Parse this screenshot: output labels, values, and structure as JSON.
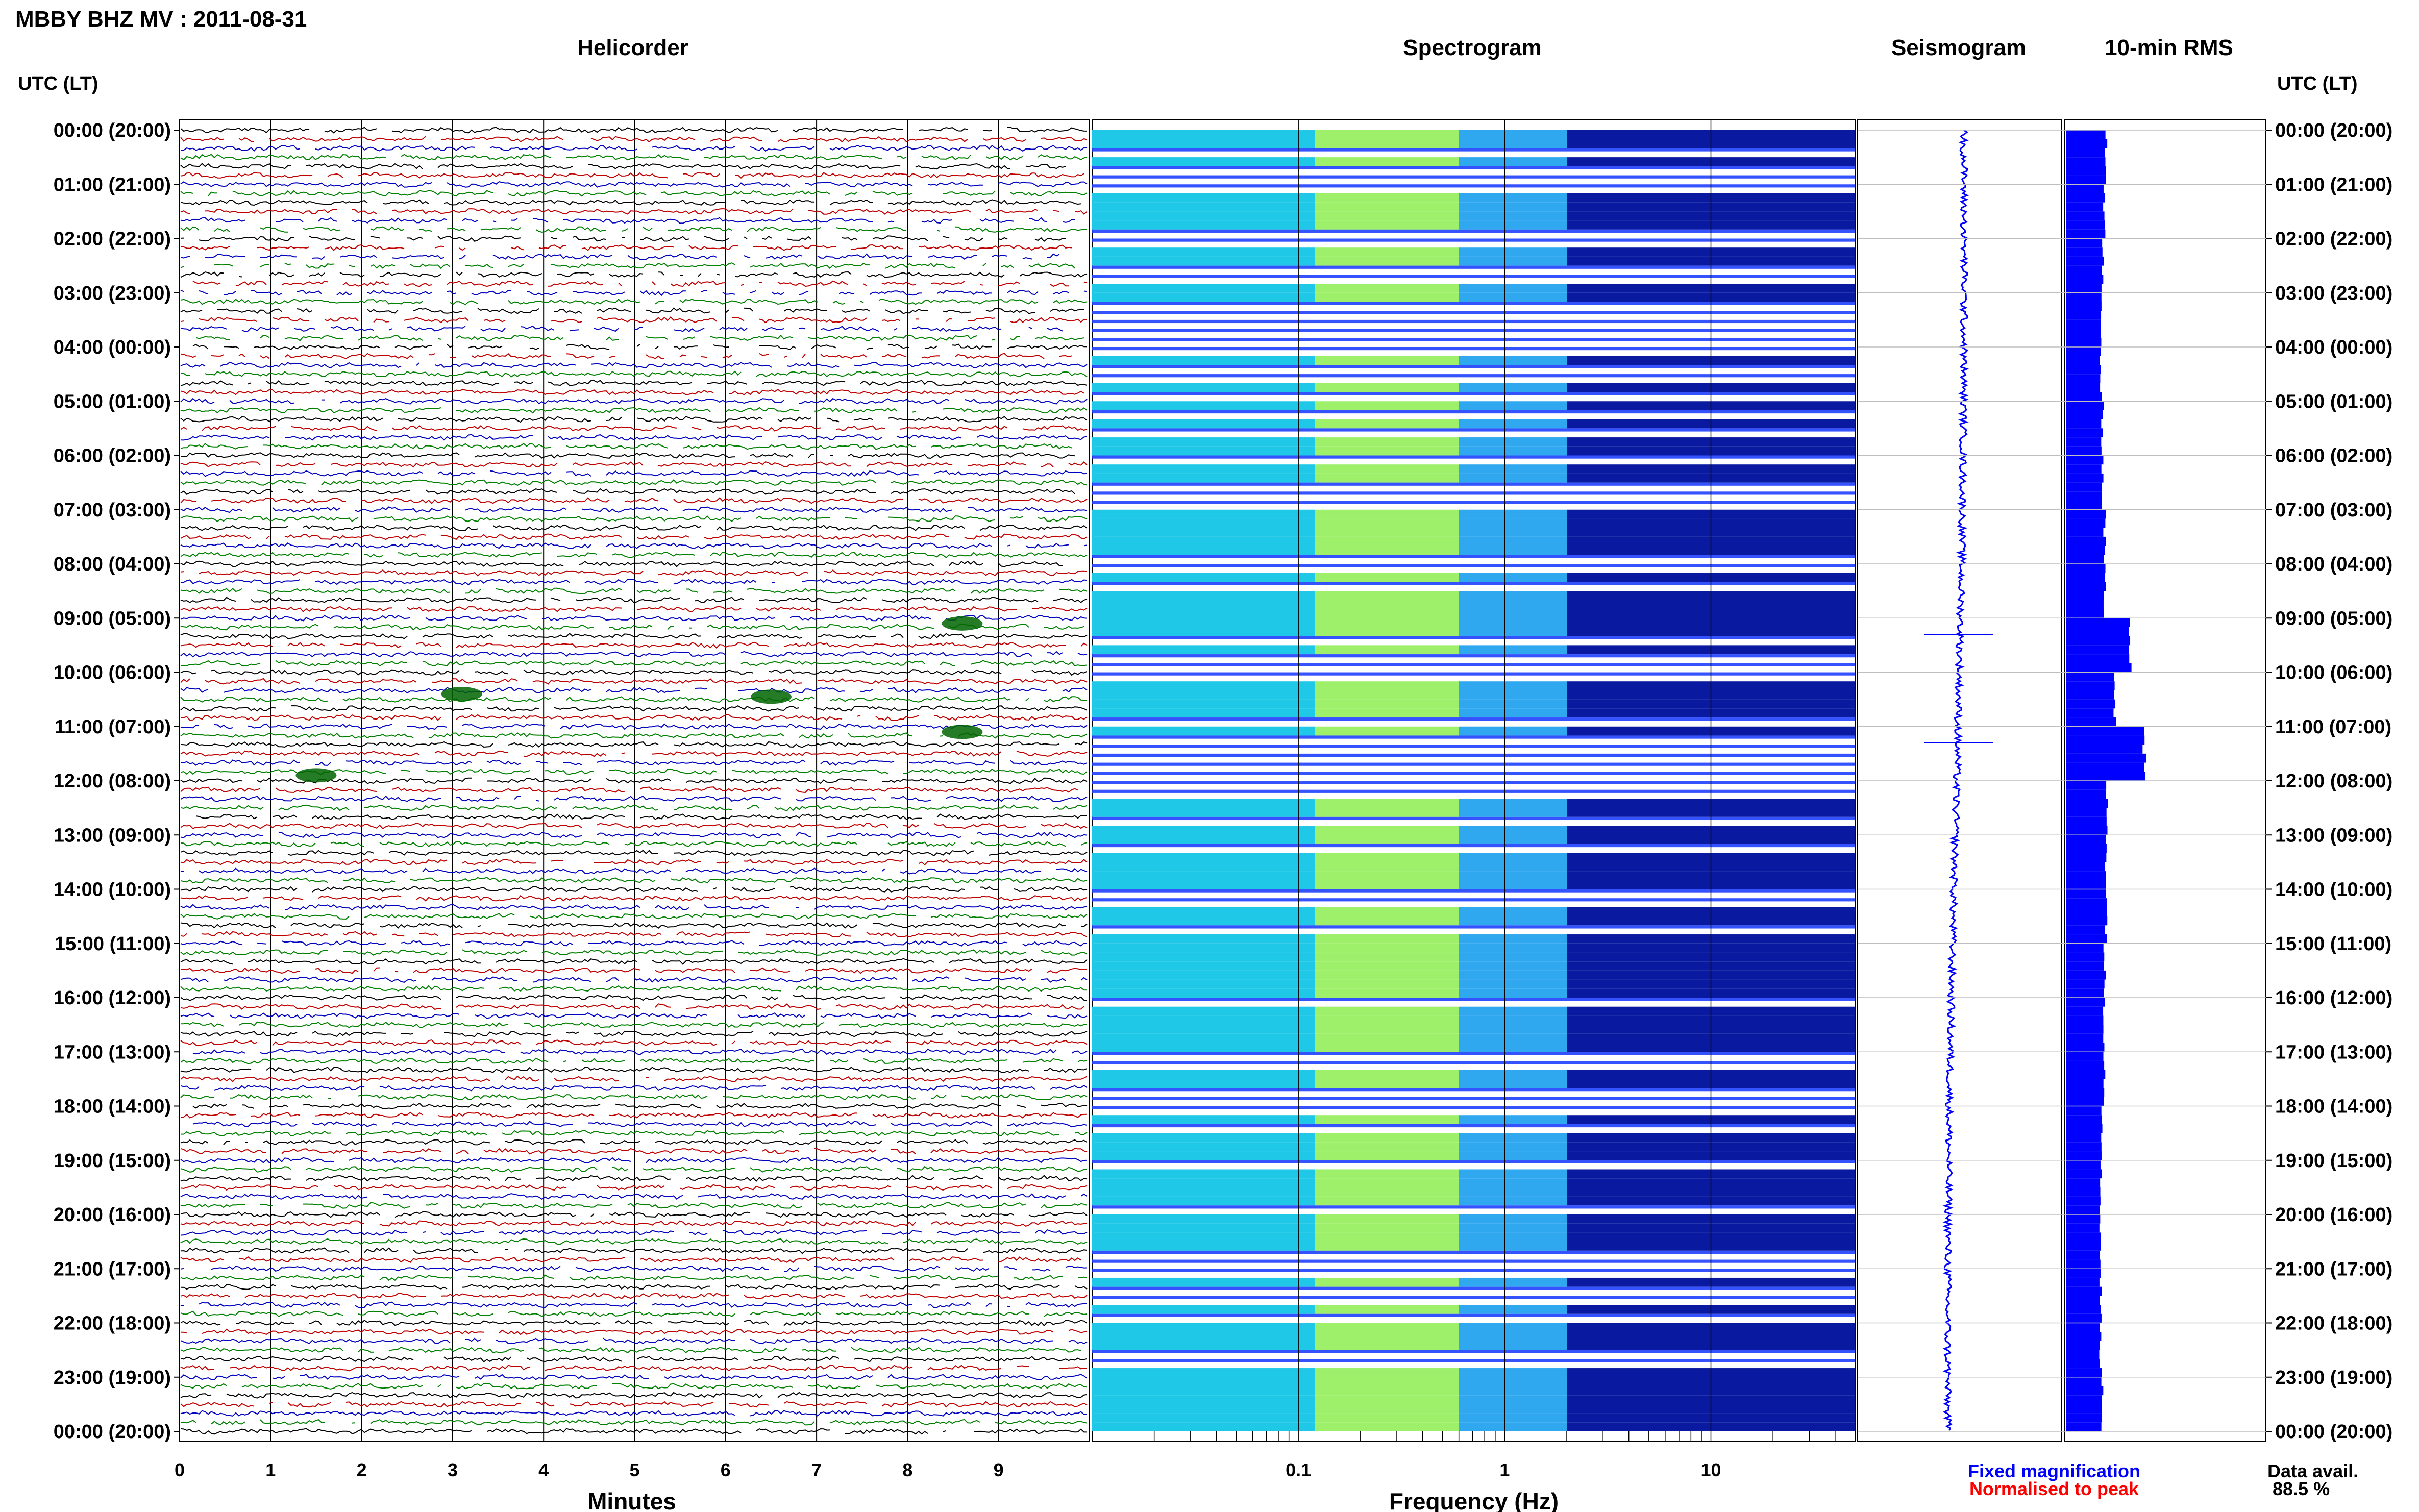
{
  "header": {
    "station_title": "MBBY BHZ MV : 2011-08-31",
    "tz_label_left": "UTC (LT)",
    "tz_label_right": "UTC (LT)"
  },
  "panels": {
    "helicorder": "Helicorder",
    "spectrogram": "Spectrogram",
    "seismogram": "Seismogram",
    "rms": "10-min RMS"
  },
  "axes": {
    "minutes_label": "Minutes",
    "frequency_label": "Frequency (Hz)"
  },
  "legend": {
    "fixed": "Fixed magnification",
    "normalised": "Normalised to peak",
    "fixed_color": "#0000ff",
    "normalised_color": "#ff0000"
  },
  "availability": {
    "label": "Data avail.",
    "value": "88.5 %"
  },
  "trace_colors": [
    "#000000",
    "#c00000",
    "#0000c0",
    "#008000"
  ],
  "chart_data": [
    {
      "type": "line",
      "panel": "Helicorder",
      "xlabel": "Minutes",
      "x_ticks": [
        0,
        1,
        2,
        3,
        4,
        5,
        6,
        7,
        8,
        9
      ],
      "xlim": [
        0,
        10
      ],
      "traces_per_hour": 6,
      "y_ticks": [
        "00:00 (20:00)",
        "01:00 (21:00)",
        "02:00 (22:00)",
        "03:00 (23:00)",
        "04:00 (00:00)",
        "05:00 (01:00)",
        "06:00 (02:00)",
        "07:00 (03:00)",
        "08:00 (04:00)",
        "09:00 (05:00)",
        "10:00 (06:00)",
        "11:00 (07:00)",
        "12:00 (08:00)",
        "13:00 (09:00)",
        "14:00 (10:00)",
        "15:00 (11:00)",
        "16:00 (12:00)",
        "17:00 (13:00)",
        "18:00 (14:00)",
        "19:00 (15:00)",
        "20:00 (16:00)",
        "21:00 (17:00)",
        "22:00 (18:00)",
        "23:00 (19:00)",
        "00:00 (20:00)"
      ],
      "events": [
        {
          "utc_hour": 9.1,
          "minute": 8.6
        },
        {
          "utc_hour": 10.4,
          "minute": 3.1
        },
        {
          "utc_hour": 10.45,
          "minute": 6.5
        },
        {
          "utc_hour": 11.1,
          "minute": 8.6
        },
        {
          "utc_hour": 11.9,
          "minute": 1.5
        }
      ]
    },
    {
      "type": "heatmap",
      "panel": "Spectrogram",
      "xlabel": "Frequency (Hz)",
      "x_scale": "log",
      "xlim": [
        0.01,
        50
      ],
      "x_ticks": [
        "0.1",
        "1",
        "10"
      ],
      "hourly_strength": [
        0.45,
        0.55,
        0.3,
        0.3,
        0.4,
        0.85,
        0.55,
        0.6,
        0.55,
        0.6,
        0.7,
        0.55,
        0.5,
        0.75,
        0.75,
        0.95,
        0.65,
        0.7,
        0.7,
        0.6,
        0.55,
        0.6,
        0.55,
        0.8
      ]
    },
    {
      "type": "line",
      "panel": "Seismogram",
      "note_events_utc": [
        9.3,
        11.3
      ]
    },
    {
      "type": "bar",
      "panel": "10-min RMS",
      "orientation": "horizontal",
      "hourly_rms": [
        1.0,
        0.95,
        0.9,
        0.85,
        0.85,
        0.9,
        0.9,
        0.95,
        0.95,
        1.6,
        1.2,
        1.9,
        1.0,
        1.0,
        1.0,
        0.95,
        0.95,
        0.95,
        0.9,
        0.85,
        0.85,
        0.85,
        0.85,
        0.9
      ]
    }
  ]
}
